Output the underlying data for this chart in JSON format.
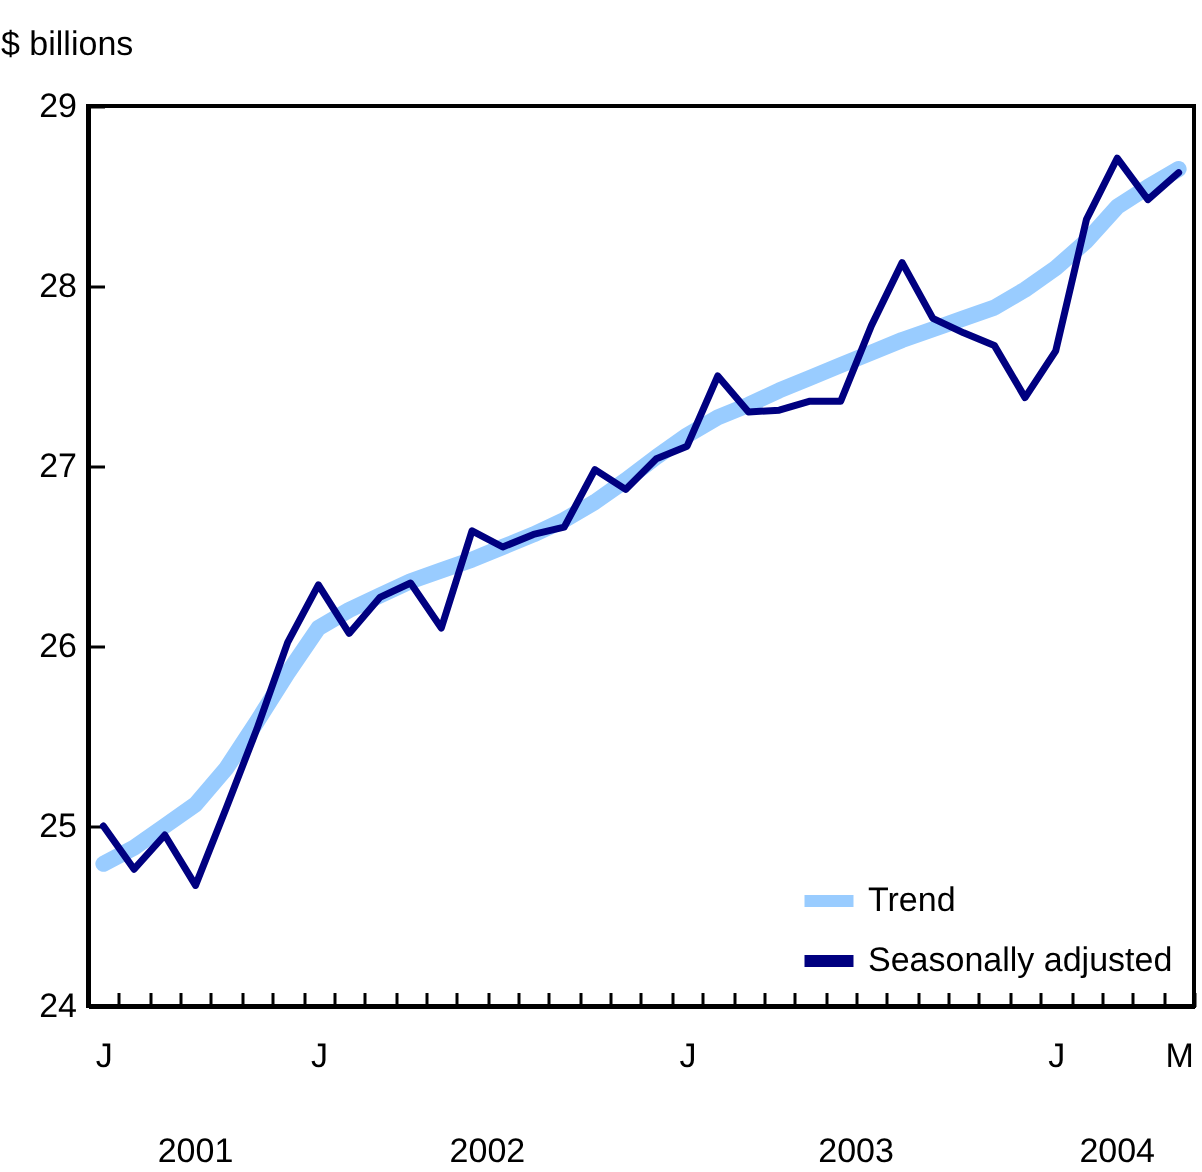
{
  "chart_data": {
    "type": "line",
    "ylabel": "$ billions",
    "categories": [
      "J",
      null,
      null,
      null,
      null,
      null,
      null,
      "J",
      null,
      null,
      null,
      null,
      null,
      null,
      null,
      null,
      null,
      null,
      null,
      "J",
      null,
      null,
      null,
      null,
      null,
      null,
      null,
      null,
      null,
      null,
      null,
      "J",
      null,
      null,
      null,
      "M"
    ],
    "series": [
      {
        "name": "Trend",
        "color": "#99ccff",
        "values": [
          24.79,
          24.88,
          25.0,
          25.12,
          25.32,
          25.58,
          25.85,
          26.1,
          26.2,
          26.28,
          26.36,
          26.42,
          26.48,
          26.55,
          26.62,
          26.7,
          26.8,
          26.92,
          27.05,
          27.17,
          27.27,
          27.34,
          27.42,
          27.49,
          27.56,
          27.63,
          27.7,
          27.76,
          27.82,
          27.88,
          27.98,
          28.1,
          28.25,
          28.44,
          28.55,
          28.65
        ]
      },
      {
        "name": "Seasonally adjusted",
        "color": "#000080",
        "values": [
          25.0,
          24.76,
          24.95,
          24.67,
          25.1,
          25.54,
          26.02,
          26.34,
          26.07,
          26.27,
          26.35,
          26.1,
          26.64,
          26.55,
          26.62,
          26.66,
          26.98,
          26.87,
          27.04,
          27.11,
          27.5,
          27.3,
          27.31,
          27.36,
          27.36,
          27.78,
          28.13,
          27.82,
          27.74,
          27.67,
          27.38,
          27.64,
          28.37,
          28.71,
          28.48,
          28.63
        ]
      }
    ],
    "ylim": [
      24,
      29
    ],
    "yticks": [
      24,
      25,
      26,
      27,
      28,
      29
    ],
    "annotations": [
      "2001",
      "2002",
      "2003",
      "2004"
    ],
    "legend": "bottom right",
    "grid": false
  }
}
